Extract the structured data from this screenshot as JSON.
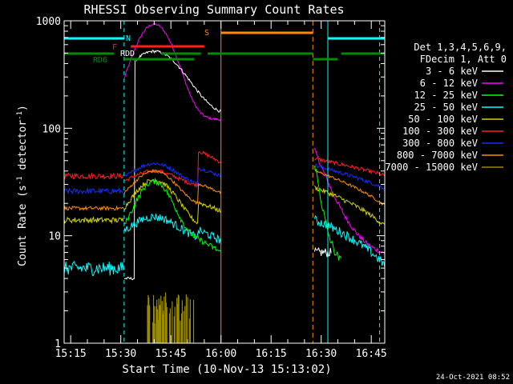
{
  "chart_data": {
    "type": "line",
    "title": "RHESSI Observing Summary Count Rates",
    "xlabel": "Start Time (10-Nov-13 15:13:02)",
    "ylabel": "Count Rate (s⁻¹ detector⁻¹)",
    "ylabel_main": "Count Rate (s",
    "ylabel_sup1": "-1",
    "ylabel_mid": " detector",
    "ylabel_sup2": "-1",
    "ylabel_end": ")",
    "y_scale": "log",
    "ylim": [
      1,
      1000
    ],
    "xlim_min": [
      15.0,
      55.0
    ],
    "y_ticks": [
      {
        "value": 1,
        "label": "1"
      },
      {
        "value": 10,
        "label": "10"
      },
      {
        "value": 100,
        "label": "100"
      },
      {
        "value": 1000,
        "label": "1000"
      }
    ],
    "x_ticks": [
      {
        "t": 15.25,
        "label": "15:15"
      },
      {
        "t": 15.5,
        "label": "15:30"
      },
      {
        "t": 15.75,
        "label": "15:45"
      },
      {
        "t": 16.0,
        "label": "16:00"
      },
      {
        "t": 16.25,
        "label": "16:15"
      },
      {
        "t": 16.5,
        "label": "16:30"
      },
      {
        "t": 16.75,
        "label": "16:45"
      }
    ],
    "legend_header": [
      "Det 1,3,4,5,6,9,",
      "FDecim 1, Att 0"
    ],
    "series": [
      {
        "name": "3 - 6 keV",
        "color": "#ffffff"
      },
      {
        "name": "6 - 12 keV",
        "color": "#ff00ff"
      },
      {
        "name": "12 - 25 keV",
        "color": "#00ff00"
      },
      {
        "name": "25 - 50 keV",
        "color": "#00ffff"
      },
      {
        "name": "50 - 100 keV",
        "color": "#d4d400"
      },
      {
        "name": "100 - 300 keV",
        "color": "#ff2020"
      },
      {
        "name": "300 - 800 keV",
        "color": "#1030ff"
      },
      {
        "name": "800 - 7000 keV",
        "color": "#ff8c00"
      },
      {
        "name": "7000 - 15000 keV",
        "color": "#9a8c00"
      }
    ],
    "flag_labels": {
      "night": "N",
      "flare": "F",
      "saa": "S",
      "decimation": "RDD",
      "decimation2": "RD6"
    },
    "timestamp": "24-Oct-2021 08:52"
  }
}
